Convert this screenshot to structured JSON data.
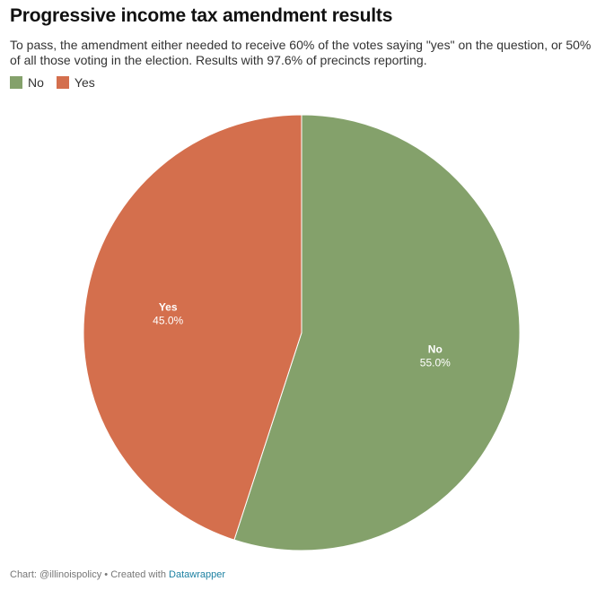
{
  "title": "Progressive income tax amendment results",
  "subtitle": "To pass, the amendment either needed to receive 60% of the votes saying \"yes\" on the question, or 50% of all those voting in the election. Results with 97.6% of precincts reporting.",
  "footer": {
    "credit": "Chart: @illinoispolicy • Created with ",
    "tool": "Datawrapper"
  },
  "chart_data": {
    "type": "pie",
    "title": "Progressive income tax amendment results",
    "categories": [
      "No",
      "Yes"
    ],
    "values": [
      55.0,
      45.0
    ],
    "value_labels": [
      "55.0%",
      "45.0%"
    ],
    "colors": [
      "#84a16b",
      "#d46f4d"
    ],
    "legend_position": "top-left"
  }
}
